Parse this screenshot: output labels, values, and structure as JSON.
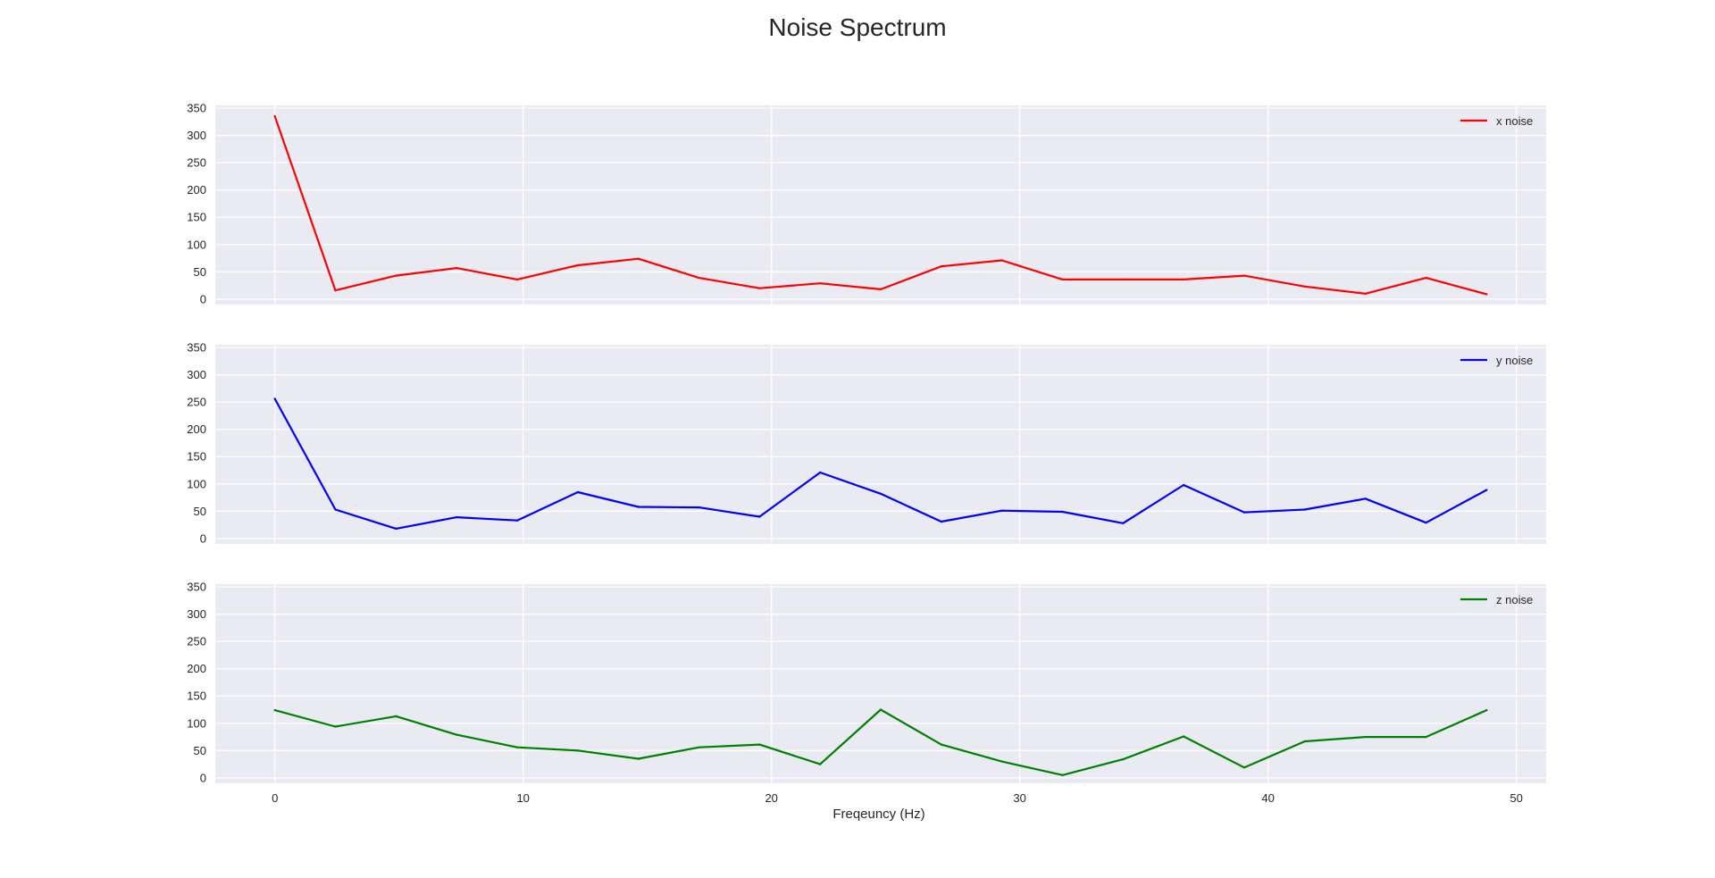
{
  "chart_data": {
    "type": "line",
    "title": "Noise Spectrum",
    "xlabel": "Freqeuncy (Hz)",
    "xlim": [
      -2.4,
      51.2
    ],
    "ylim": [
      -10,
      355
    ],
    "x_ticks": [
      "0",
      "10",
      "20",
      "30",
      "40",
      "50"
    ],
    "y_ticks": [
      "0",
      "50",
      "100",
      "150",
      "200",
      "250",
      "300",
      "350"
    ],
    "grid": true,
    "background": "#EAEAF2",
    "legend_position": "top-right",
    "x": [
      0,
      2.44,
      4.88,
      7.32,
      9.76,
      12.2,
      14.64,
      17.08,
      19.52,
      21.96,
      24.4,
      26.84,
      29.28,
      31.72,
      34.16,
      36.6,
      39.04,
      41.48,
      43.92,
      46.36,
      48.8
    ],
    "panels": [
      {
        "name": "x noise",
        "color": "#FF0000",
        "values": [
          335,
          16,
          43,
          57,
          36,
          62,
          74,
          39,
          20,
          29,
          18,
          60,
          71,
          36,
          36,
          36,
          43,
          23,
          10,
          39,
          9
        ]
      },
      {
        "name": "y noise",
        "color": "#0000FF",
        "values": [
          256,
          53,
          18,
          39,
          33,
          85,
          58,
          57,
          40,
          121,
          82,
          31,
          51,
          49,
          28,
          98,
          48,
          53,
          73,
          29,
          89
        ]
      },
      {
        "name": "z noise",
        "color": "#008000",
        "values": [
          124,
          94,
          113,
          79,
          56,
          50,
          35,
          56,
          61,
          25,
          125,
          61,
          30,
          5,
          34,
          76,
          19,
          67,
          75,
          75,
          124
        ]
      }
    ]
  }
}
